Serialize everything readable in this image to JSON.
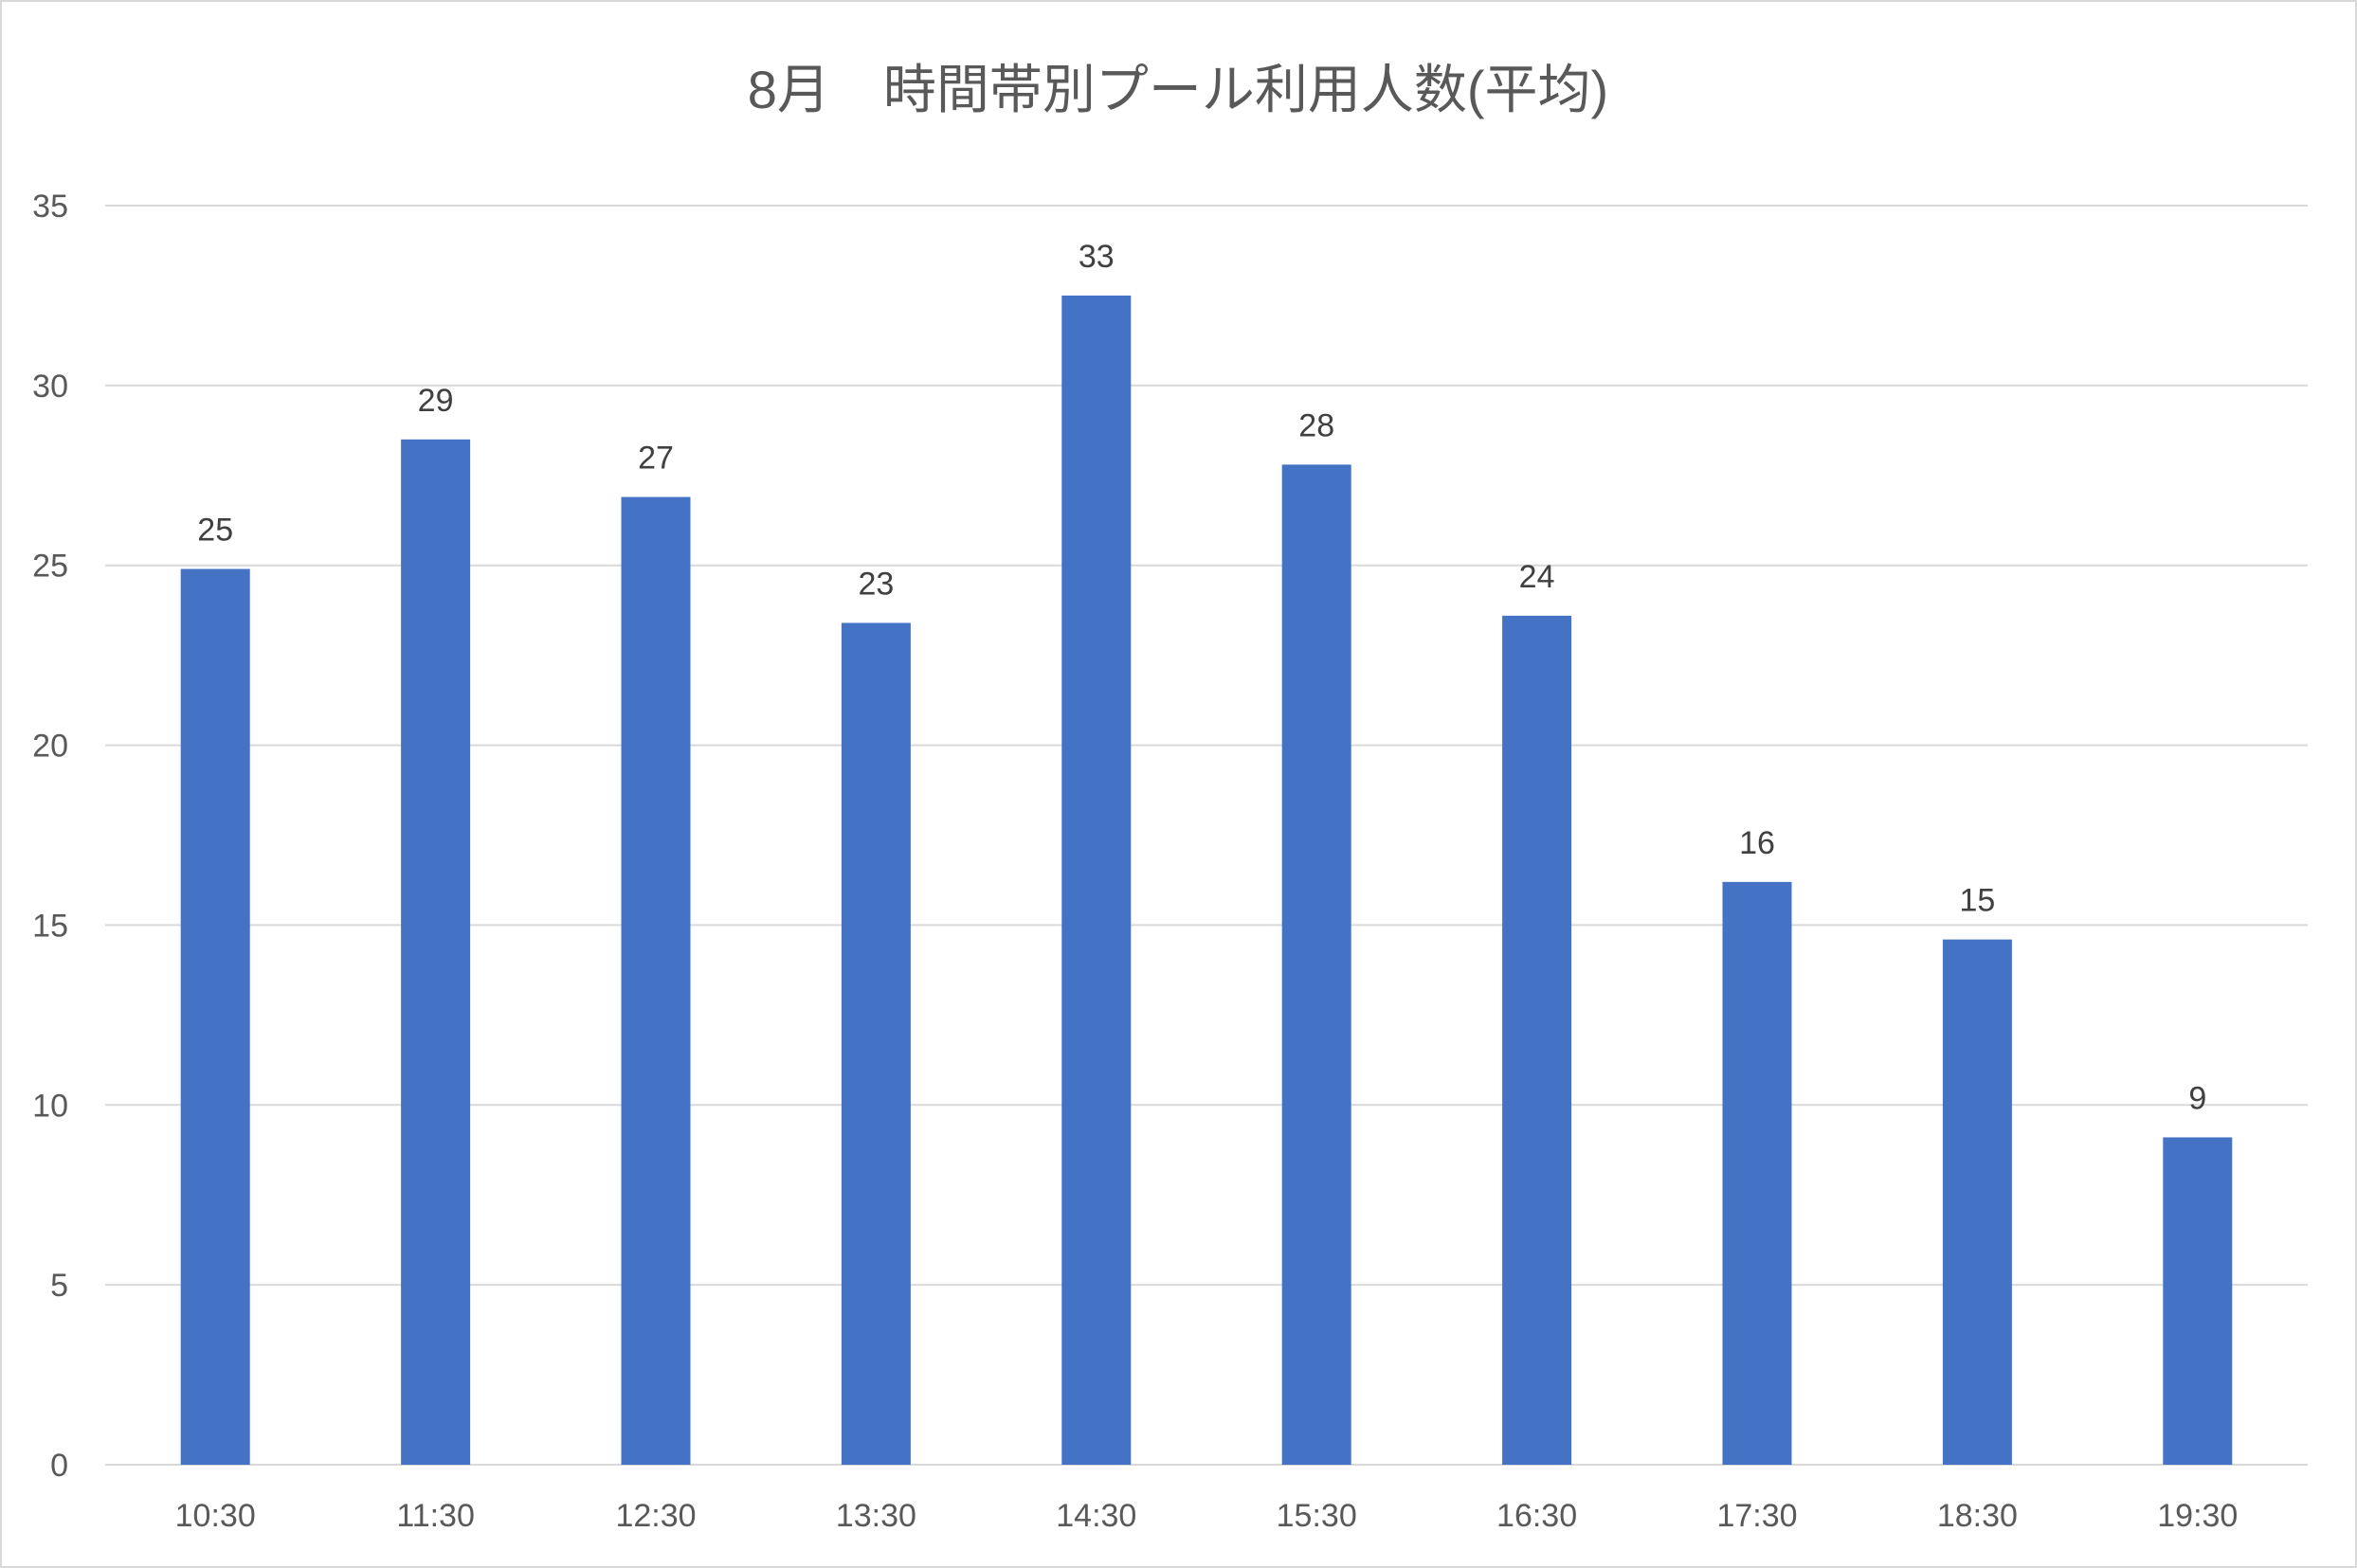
{
  "chart_data": {
    "type": "bar",
    "title": "8月　時間帯別プール利用人数(平均)",
    "categories": [
      "10:30",
      "11:30",
      "12:30",
      "13:30",
      "14:30",
      "15:30",
      "16:30",
      "17:30",
      "18:30",
      "19:30"
    ],
    "values": [
      24.9,
      28.5,
      26.9,
      23.4,
      32.5,
      27.8,
      23.6,
      16.2,
      14.6,
      9.1
    ],
    "data_labels": [
      "25",
      "29",
      "27",
      "23",
      "33",
      "28",
      "24",
      "16",
      "15",
      "9"
    ],
    "xlabel": "",
    "ylabel": "",
    "ylim": [
      0,
      35
    ],
    "yticks": [
      "0",
      "5",
      "10",
      "15",
      "20",
      "25",
      "30",
      "35"
    ],
    "grid": true,
    "legend": "none",
    "bar_color": "#4472C4",
    "grid_color": "#D9D9D9",
    "text_color": "#595959"
  }
}
